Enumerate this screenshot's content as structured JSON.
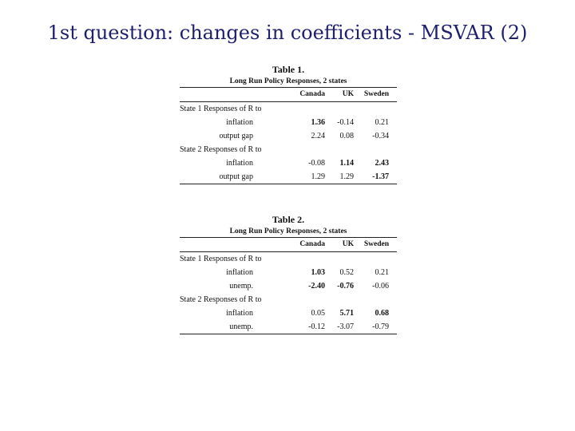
{
  "slide": {
    "title": "1st question: changes in coefficients - MSVAR (2)"
  },
  "tables": [
    {
      "title": "Table 1.",
      "subtitle": "Long Run Policy Responses, 2 states",
      "columns": [
        "Canada",
        "UK",
        "Sweden"
      ],
      "rows": [
        {
          "label": "State 1 Responses of R to",
          "sub": false,
          "values": [
            "",
            "",
            ""
          ],
          "bold": [
            false,
            false,
            false
          ]
        },
        {
          "label": "inflation",
          "sub": true,
          "values": [
            "1.36",
            "-0.14",
            "0.21"
          ],
          "bold": [
            true,
            false,
            false
          ]
        },
        {
          "label": "output gap",
          "sub": true,
          "values": [
            "2.24",
            "0.08",
            "-0.34"
          ],
          "bold": [
            false,
            false,
            false
          ]
        },
        {
          "label": "State 2 Responses of R to",
          "sub": false,
          "values": [
            "",
            "",
            ""
          ],
          "bold": [
            false,
            false,
            false
          ]
        },
        {
          "label": "inflation",
          "sub": true,
          "values": [
            "-0.08",
            "1.14",
            "2.43"
          ],
          "bold": [
            false,
            true,
            true
          ]
        },
        {
          "label": "output gap",
          "sub": true,
          "values": [
            "1.29",
            "1.29",
            "-1.37"
          ],
          "bold": [
            false,
            false,
            true
          ]
        }
      ]
    },
    {
      "title": "Table 2.",
      "subtitle": "Long Run Policy Responses, 2 states",
      "columns": [
        "Canada",
        "UK",
        "Sweden"
      ],
      "rows": [
        {
          "label": "State 1 Responses of R to",
          "sub": false,
          "values": [
            "",
            "",
            ""
          ],
          "bold": [
            false,
            false,
            false
          ]
        },
        {
          "label": "inflation",
          "sub": true,
          "values": [
            "1.03",
            "0.52",
            "0.21"
          ],
          "bold": [
            true,
            false,
            false
          ]
        },
        {
          "label": "unemp.",
          "sub": true,
          "values": [
            "-2.40",
            "-0.76",
            "-0.06"
          ],
          "bold": [
            true,
            true,
            false
          ]
        },
        {
          "label": "State 2 Responses of R to",
          "sub": false,
          "values": [
            "",
            "",
            ""
          ],
          "bold": [
            false,
            false,
            false
          ]
        },
        {
          "label": "inflation",
          "sub": true,
          "values": [
            "0.05",
            "5.71",
            "0.68"
          ],
          "bold": [
            false,
            true,
            true
          ]
        },
        {
          "label": "unemp.",
          "sub": true,
          "values": [
            "-0.12",
            "-3.07",
            "-0.79"
          ],
          "bold": [
            false,
            false,
            false
          ]
        }
      ]
    }
  ]
}
